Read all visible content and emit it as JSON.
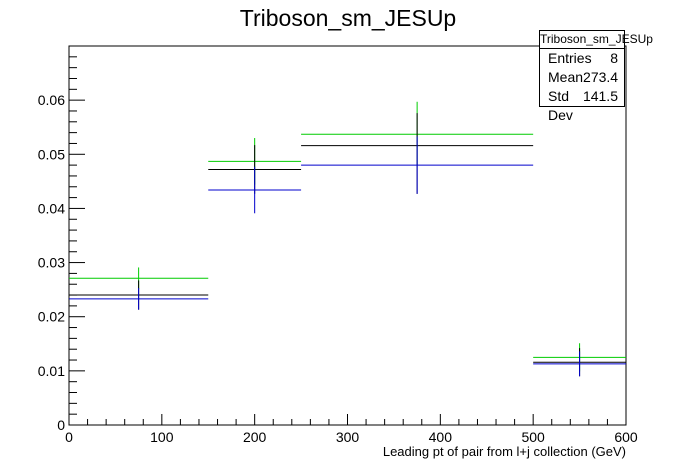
{
  "chart_data": {
    "type": "histogram",
    "title": "Triboson_sm_JESUp",
    "xlabel": "Leading pt of pair from l+j collection (GeV)",
    "ylabel": "",
    "xlim": [
      0,
      600
    ],
    "ylim": [
      0,
      0.07
    ],
    "x_ticks": [
      0,
      100,
      200,
      300,
      400,
      500,
      600
    ],
    "y_ticks": [
      0,
      0.01,
      0.02,
      0.03,
      0.04,
      0.05,
      0.06
    ],
    "x_tick_labels": [
      "0",
      "100",
      "200",
      "300",
      "400",
      "500",
      "600"
    ],
    "y_tick_labels": [
      "0",
      "0.01",
      "0.02",
      "0.03",
      "0.04",
      "0.05",
      "0.06"
    ],
    "bins": [
      [
        0,
        150
      ],
      [
        150,
        250
      ],
      [
        250,
        500
      ],
      [
        500,
        600
      ]
    ],
    "series": [
      {
        "color": "#00cc00",
        "values": [
          0.0271,
          0.0487,
          0.0537,
          0.0125
        ],
        "errors": [
          [
            0.0251,
            0.0291
          ],
          [
            0.0444,
            0.053
          ],
          [
            0.0479,
            0.0597
          ],
          [
            0.0099,
            0.0151
          ]
        ]
      },
      {
        "color": "#000000",
        "values": [
          0.024,
          0.0472,
          0.0516,
          0.0116
        ],
        "errors": [
          [
            0.0213,
            0.0267
          ],
          [
            0.0427,
            0.0517
          ],
          [
            0.0427,
            0.0576
          ],
          [
            0.009,
            0.0142
          ]
        ]
      },
      {
        "color": "#0000cc",
        "values": [
          0.0233,
          0.0434,
          0.048,
          0.0113
        ],
        "errors": [
          [
            0.0213,
            0.0253
          ],
          [
            0.0391,
            0.0477
          ],
          [
            0.0427,
            0.0533
          ],
          [
            0.009,
            0.0136
          ]
        ]
      }
    ],
    "grid": false,
    "legend": "none",
    "stats_box": {
      "position": "top-right",
      "title": "Triboson_sm_JESUp",
      "rows": [
        {
          "label": "Entries",
          "value": "8"
        },
        {
          "label": "Mean",
          "value": "273.4"
        },
        {
          "label": "Std Dev",
          "value": "141.5"
        }
      ]
    }
  }
}
